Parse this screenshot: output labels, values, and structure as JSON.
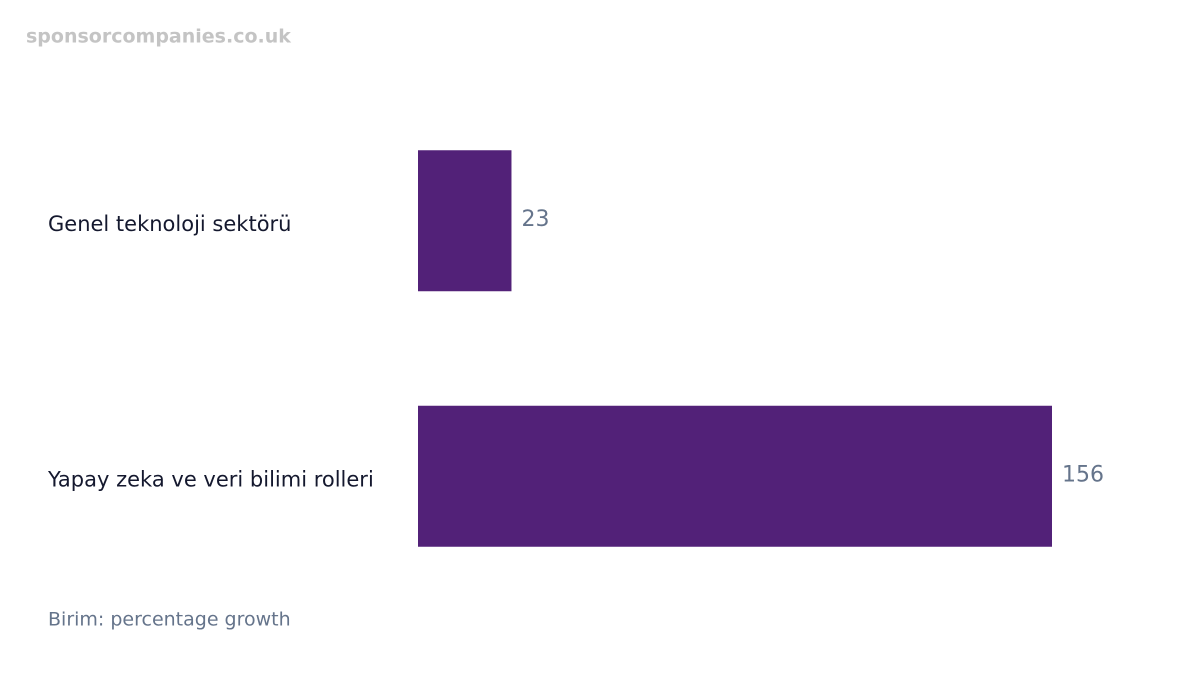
{
  "watermark": "sponsorcompanies.co.uk",
  "chart_data": {
    "type": "bar",
    "categories": [
      "Genel teknoloji sektörü",
      "Yapay zeka ve veri bilimi rolleri"
    ],
    "values": [
      23,
      156
    ],
    "color": "#522178",
    "note": "Birim: percentage growth"
  }
}
